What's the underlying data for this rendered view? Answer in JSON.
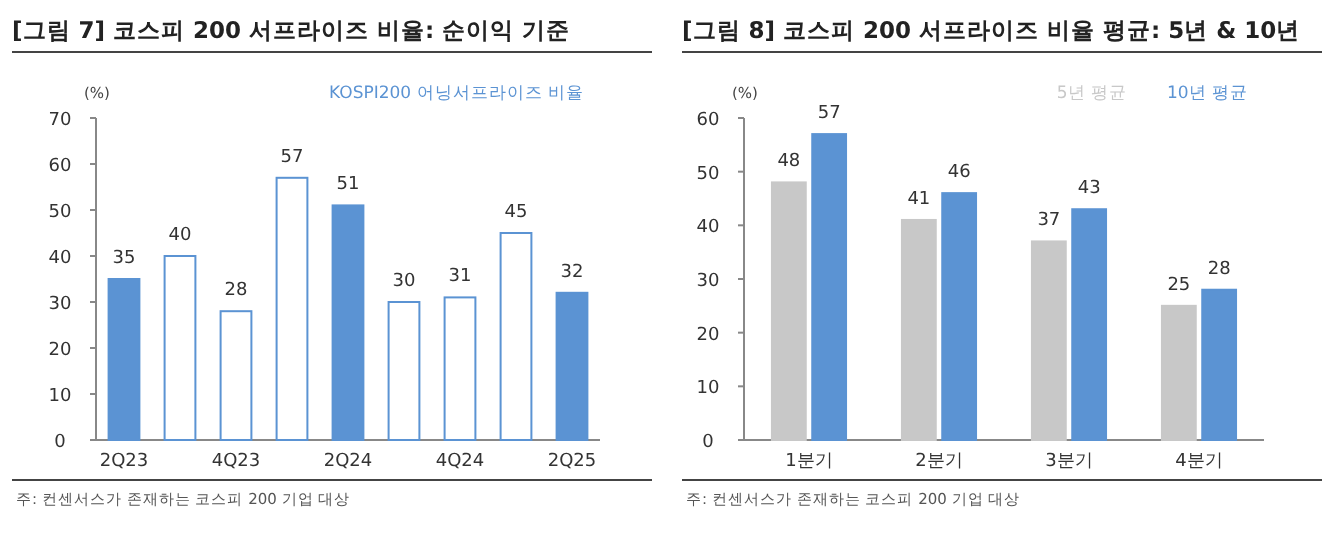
{
  "chart_data": [
    {
      "type": "bar",
      "title": "[그림 7] 코스피 200 서프라이즈 비율: 순이익 기준",
      "ylabel": "(%)",
      "categories": [
        "2Q23",
        null,
        "4Q23",
        null,
        "2Q24",
        null,
        "4Q24",
        null,
        "2Q25"
      ],
      "series": [
        {
          "name": "KOSPI200 어닝서프라이즈 비율",
          "color": "#5b93d3",
          "values": [
            35,
            40,
            28,
            57,
            51,
            30,
            31,
            45,
            32
          ]
        }
      ],
      "colors": [
        "#5b93d3",
        "#ffffff",
        "#ffffff",
        "#ffffff",
        "#5b93d3",
        "#ffffff",
        "#ffffff",
        "#ffffff",
        "#5b93d3"
      ],
      "ylim": [
        0,
        70
      ],
      "yticks": [
        0,
        10,
        20,
        30,
        40,
        50,
        60,
        70
      ],
      "data_labels": true,
      "legend": "top right",
      "annotations": [
        "주: 컨센서스가 존재하는 코스피 200 기업 대상"
      ]
    },
    {
      "type": "bar",
      "title": "[그림 8] 코스피 200 서프라이즈 비율 평균: 5년 & 10년",
      "ylabel": "(%)",
      "categories": [
        "1분기",
        "2분기",
        "3분기",
        "4분기"
      ],
      "series": [
        {
          "name": "5년 평균",
          "color": "#c8c8c8",
          "values": [
            48,
            41,
            37,
            25
          ]
        },
        {
          "name": "10년 평균",
          "color": "#5b93d3",
          "values": [
            57,
            46,
            43,
            28
          ]
        }
      ],
      "ylim": [
        0,
        60
      ],
      "yticks": [
        0,
        10,
        20,
        30,
        40,
        50,
        60
      ],
      "data_labels": true,
      "legend": "top right",
      "annotations": [
        "주: 컨센서스가 존재하는 코스피 200 기업 대상"
      ]
    }
  ]
}
